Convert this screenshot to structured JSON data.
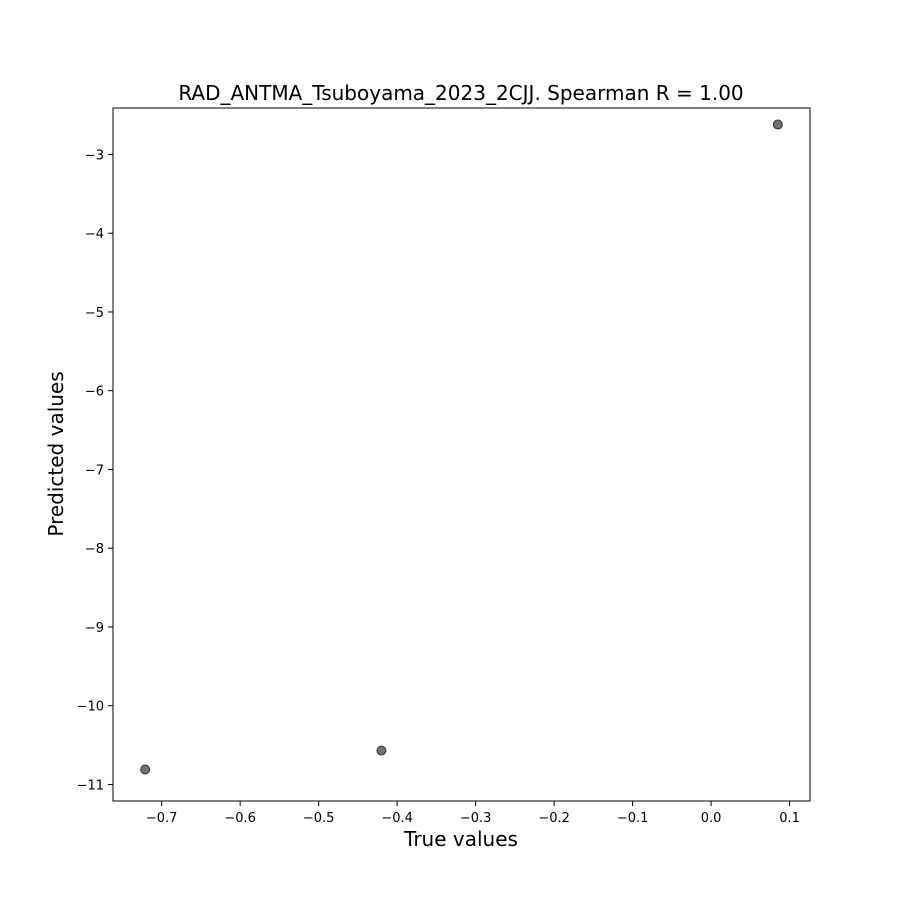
{
  "chart_data": {
    "type": "scatter",
    "title": "RAD_ANTMA_Tsuboyama_2023_2CJJ. Spearman R = 1.00",
    "xlabel": "True values",
    "ylabel": "Predicted values",
    "xlim": [
      -0.762,
      0.126
    ],
    "ylim": [
      -11.21,
      -2.41
    ],
    "x_ticks": [
      -0.7,
      -0.6,
      -0.5,
      -0.4,
      -0.3,
      -0.2,
      -0.1,
      0.0,
      0.1
    ],
    "x_tick_labels": [
      "−0.7",
      "−0.6",
      "−0.5",
      "−0.4",
      "−0.3",
      "−0.2",
      "−0.1",
      "0.0",
      "0.1"
    ],
    "y_ticks": [
      -11,
      -10,
      -9,
      -8,
      -7,
      -6,
      -5,
      -4,
      -3
    ],
    "y_tick_labels": [
      "−11",
      "−10",
      "−9",
      "−8",
      "−7",
      "−6",
      "−5",
      "−4",
      "−3"
    ],
    "grid": false,
    "points": [
      {
        "x": -0.721,
        "y": -10.81
      },
      {
        "x": -0.42,
        "y": -10.57
      },
      {
        "x": 0.085,
        "y": -2.62
      }
    ],
    "marker_color": "#595959"
  }
}
